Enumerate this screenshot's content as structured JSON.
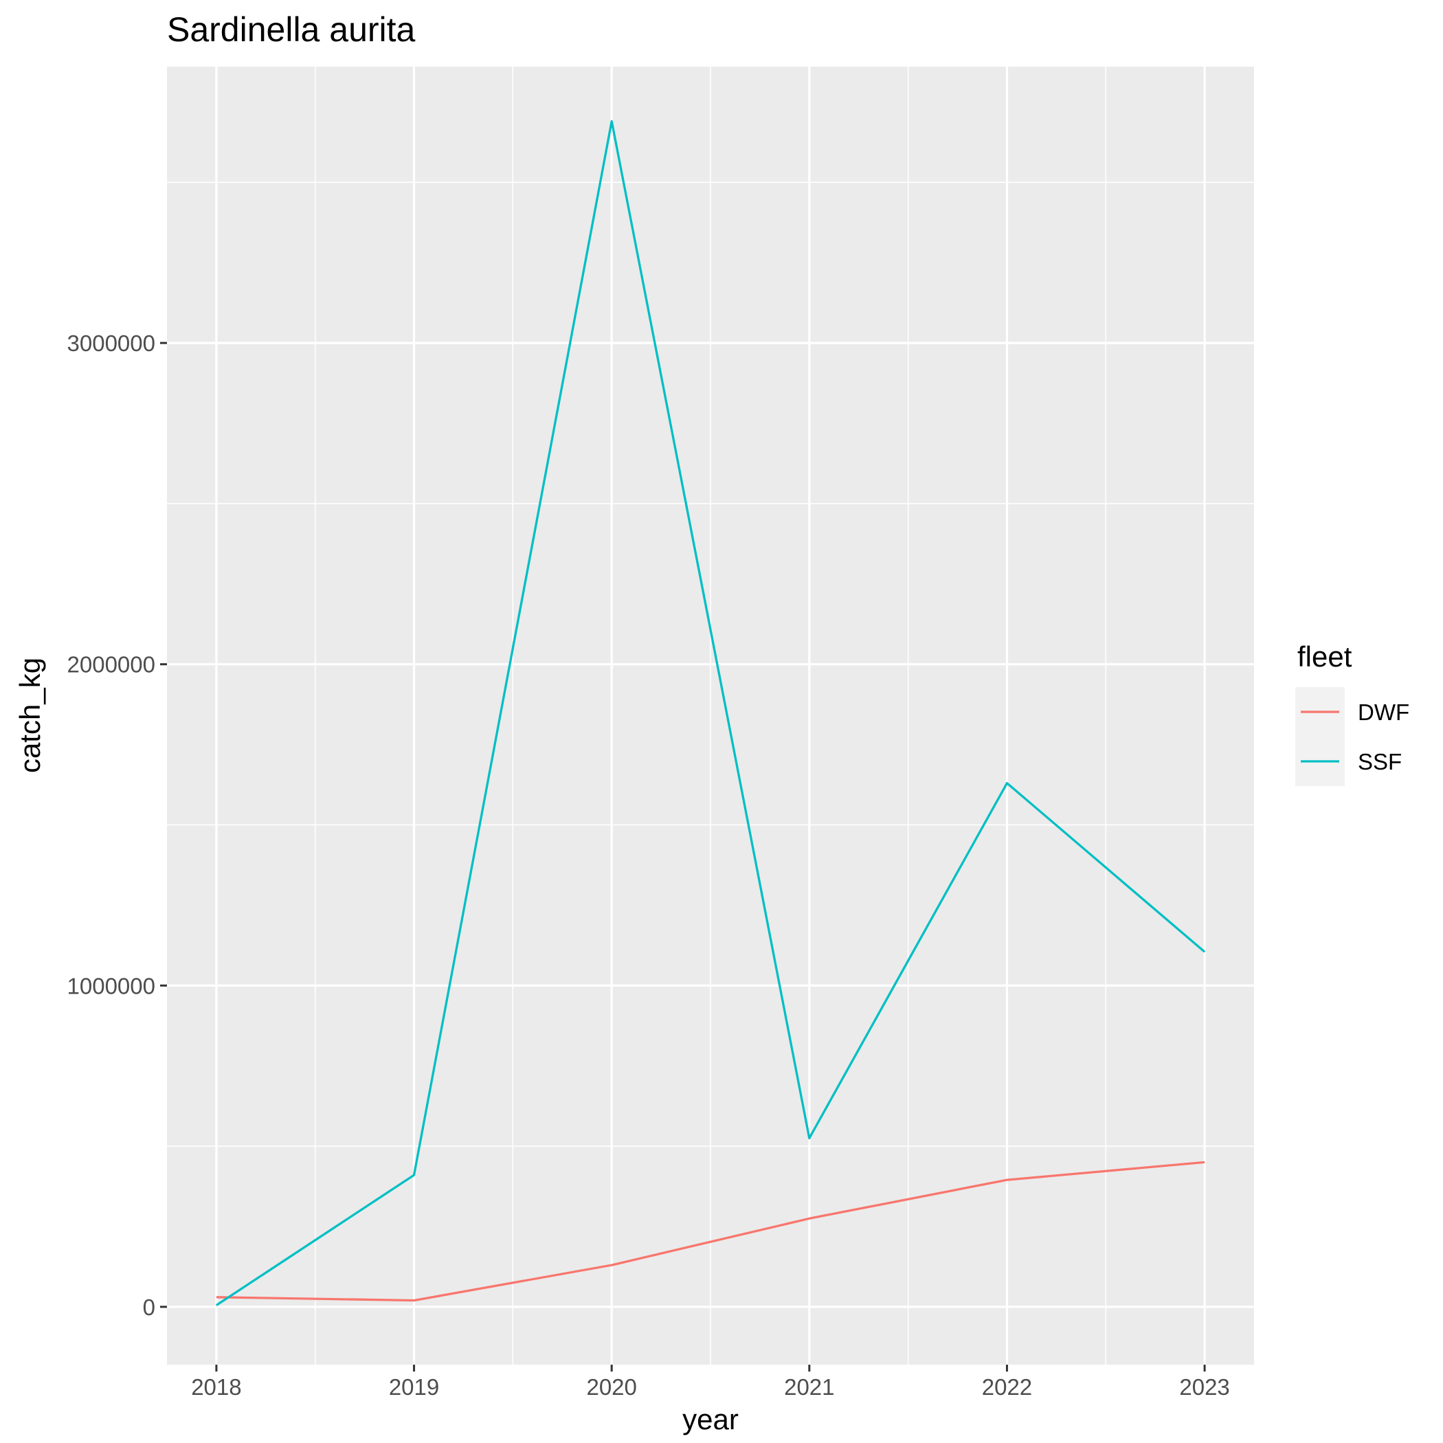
{
  "chart_data": {
    "type": "line",
    "title": "Sardinella aurita",
    "xlabel": "year",
    "ylabel": "catch_kg",
    "x": [
      2018,
      2019,
      2020,
      2021,
      2022,
      2023
    ],
    "x_ticks": [
      "2018",
      "2019",
      "2020",
      "2021",
      "2022",
      "2023"
    ],
    "y_ticks": [
      {
        "value": 0,
        "label": "0"
      },
      {
        "value": 1000000,
        "label": "1000000"
      },
      {
        "value": 2000000,
        "label": "2000000"
      },
      {
        "value": 3000000,
        "label": "3000000"
      }
    ],
    "xlim": [
      2017.75,
      2023.25
    ],
    "ylim": [
      -180000,
      3860000
    ],
    "grid": true,
    "legend": {
      "title": "fleet",
      "position": "right"
    },
    "series": [
      {
        "name": "DWF",
        "color": "#F8766D",
        "values": [
          30000,
          20000,
          130000,
          275000,
          395000,
          450000
        ]
      },
      {
        "name": "SSF",
        "color": "#00BFC4",
        "values": [
          5000,
          410000,
          3690000,
          525000,
          1630000,
          1105000
        ]
      }
    ]
  },
  "colors": {
    "panel_background": "#EBEBEB",
    "grid_line": "#FFFFFF",
    "legend_key_background": "#F2F2F2",
    "tick_color": "#333333"
  }
}
